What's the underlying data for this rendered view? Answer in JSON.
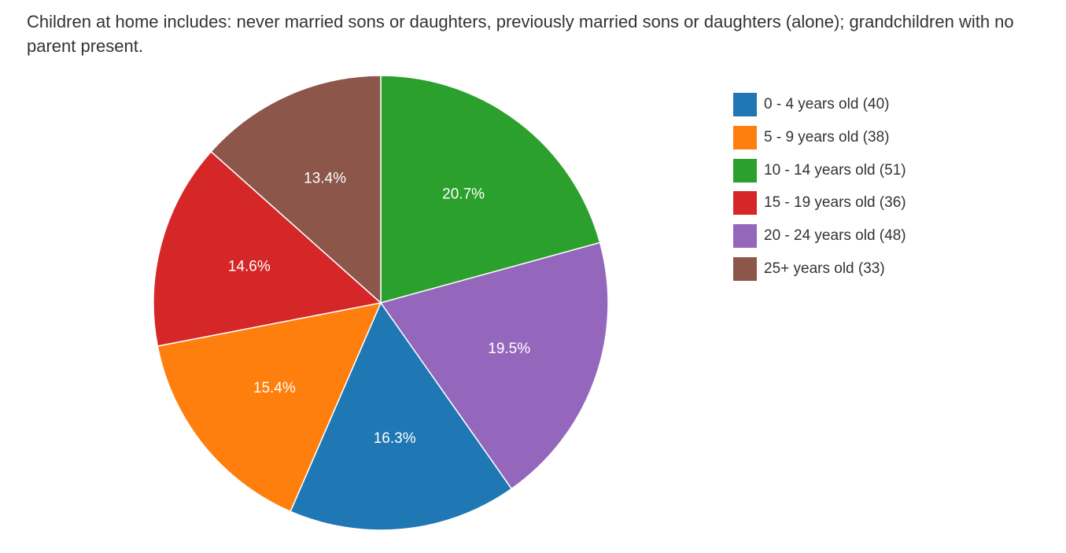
{
  "chart_data": {
    "type": "pie",
    "title": "Children at home includes: never married sons or daughters, previously married sons or daughters (alone); grandchildren with no parent present.",
    "categories": [
      "0 - 4 years old (40)",
      "5 - 9 years old (38)",
      "10 - 14 years old (51)",
      "15 - 19 years old (36)",
      "20 - 24 years old (48)",
      "25+ years old (33)"
    ],
    "values": [
      40,
      38,
      51,
      36,
      48,
      33
    ],
    "percent_labels": [
      "16.3%",
      "15.4%",
      "20.7%",
      "14.6%",
      "19.5%",
      "13.4%"
    ],
    "colors": [
      "#1f77b4",
      "#ff7f0e",
      "#2ca02c",
      "#d62728",
      "#9467bd",
      "#8c564b"
    ],
    "slice_order_clockwise_from_top": [
      2,
      4,
      0,
      1,
      3,
      5
    ],
    "legend_position": "right"
  }
}
